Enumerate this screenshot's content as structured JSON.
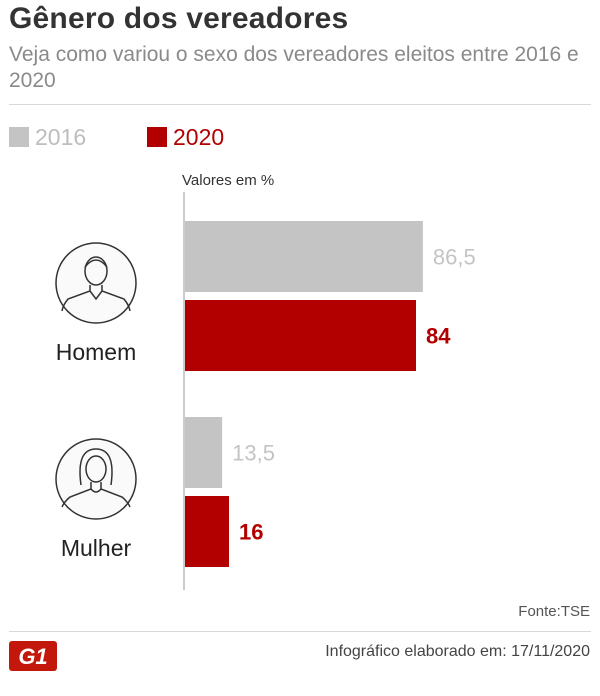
{
  "header": {
    "title": "Gênero dos vereadores",
    "subtitle": "Veja como variou o sexo dos vereadores eleitos entre 2016 e 2020"
  },
  "legend": [
    {
      "label": "2016",
      "color": "#c4c4c4",
      "text_color": "#bdbdbd"
    },
    {
      "label": "2020",
      "color": "#b20000",
      "text_color": "#b20000"
    }
  ],
  "chart_data": {
    "type": "bar",
    "orientation": "horizontal",
    "title": "Gênero dos vereadores",
    "unit_label": "Valores em %",
    "categories": [
      "Homem",
      "Mulher"
    ],
    "category_icons": [
      "man-icon",
      "woman-icon"
    ],
    "series": [
      {
        "name": "2016",
        "color": "#c4c4c4",
        "values": [
          86.5,
          13.5
        ],
        "labels": [
          "86,5",
          "13,5"
        ]
      },
      {
        "name": "2020",
        "color": "#b20000",
        "values": [
          84,
          16
        ],
        "labels": [
          "84",
          "16"
        ]
      }
    ],
    "xlim": [
      0,
      100
    ],
    "grid": false,
    "legend_position": "top-left"
  },
  "footer": {
    "source": "Fonte:TSE",
    "logo": "G1",
    "logo_color": "#c4170c",
    "credit": "Infográfico elaborado em: 17/11/2020"
  }
}
